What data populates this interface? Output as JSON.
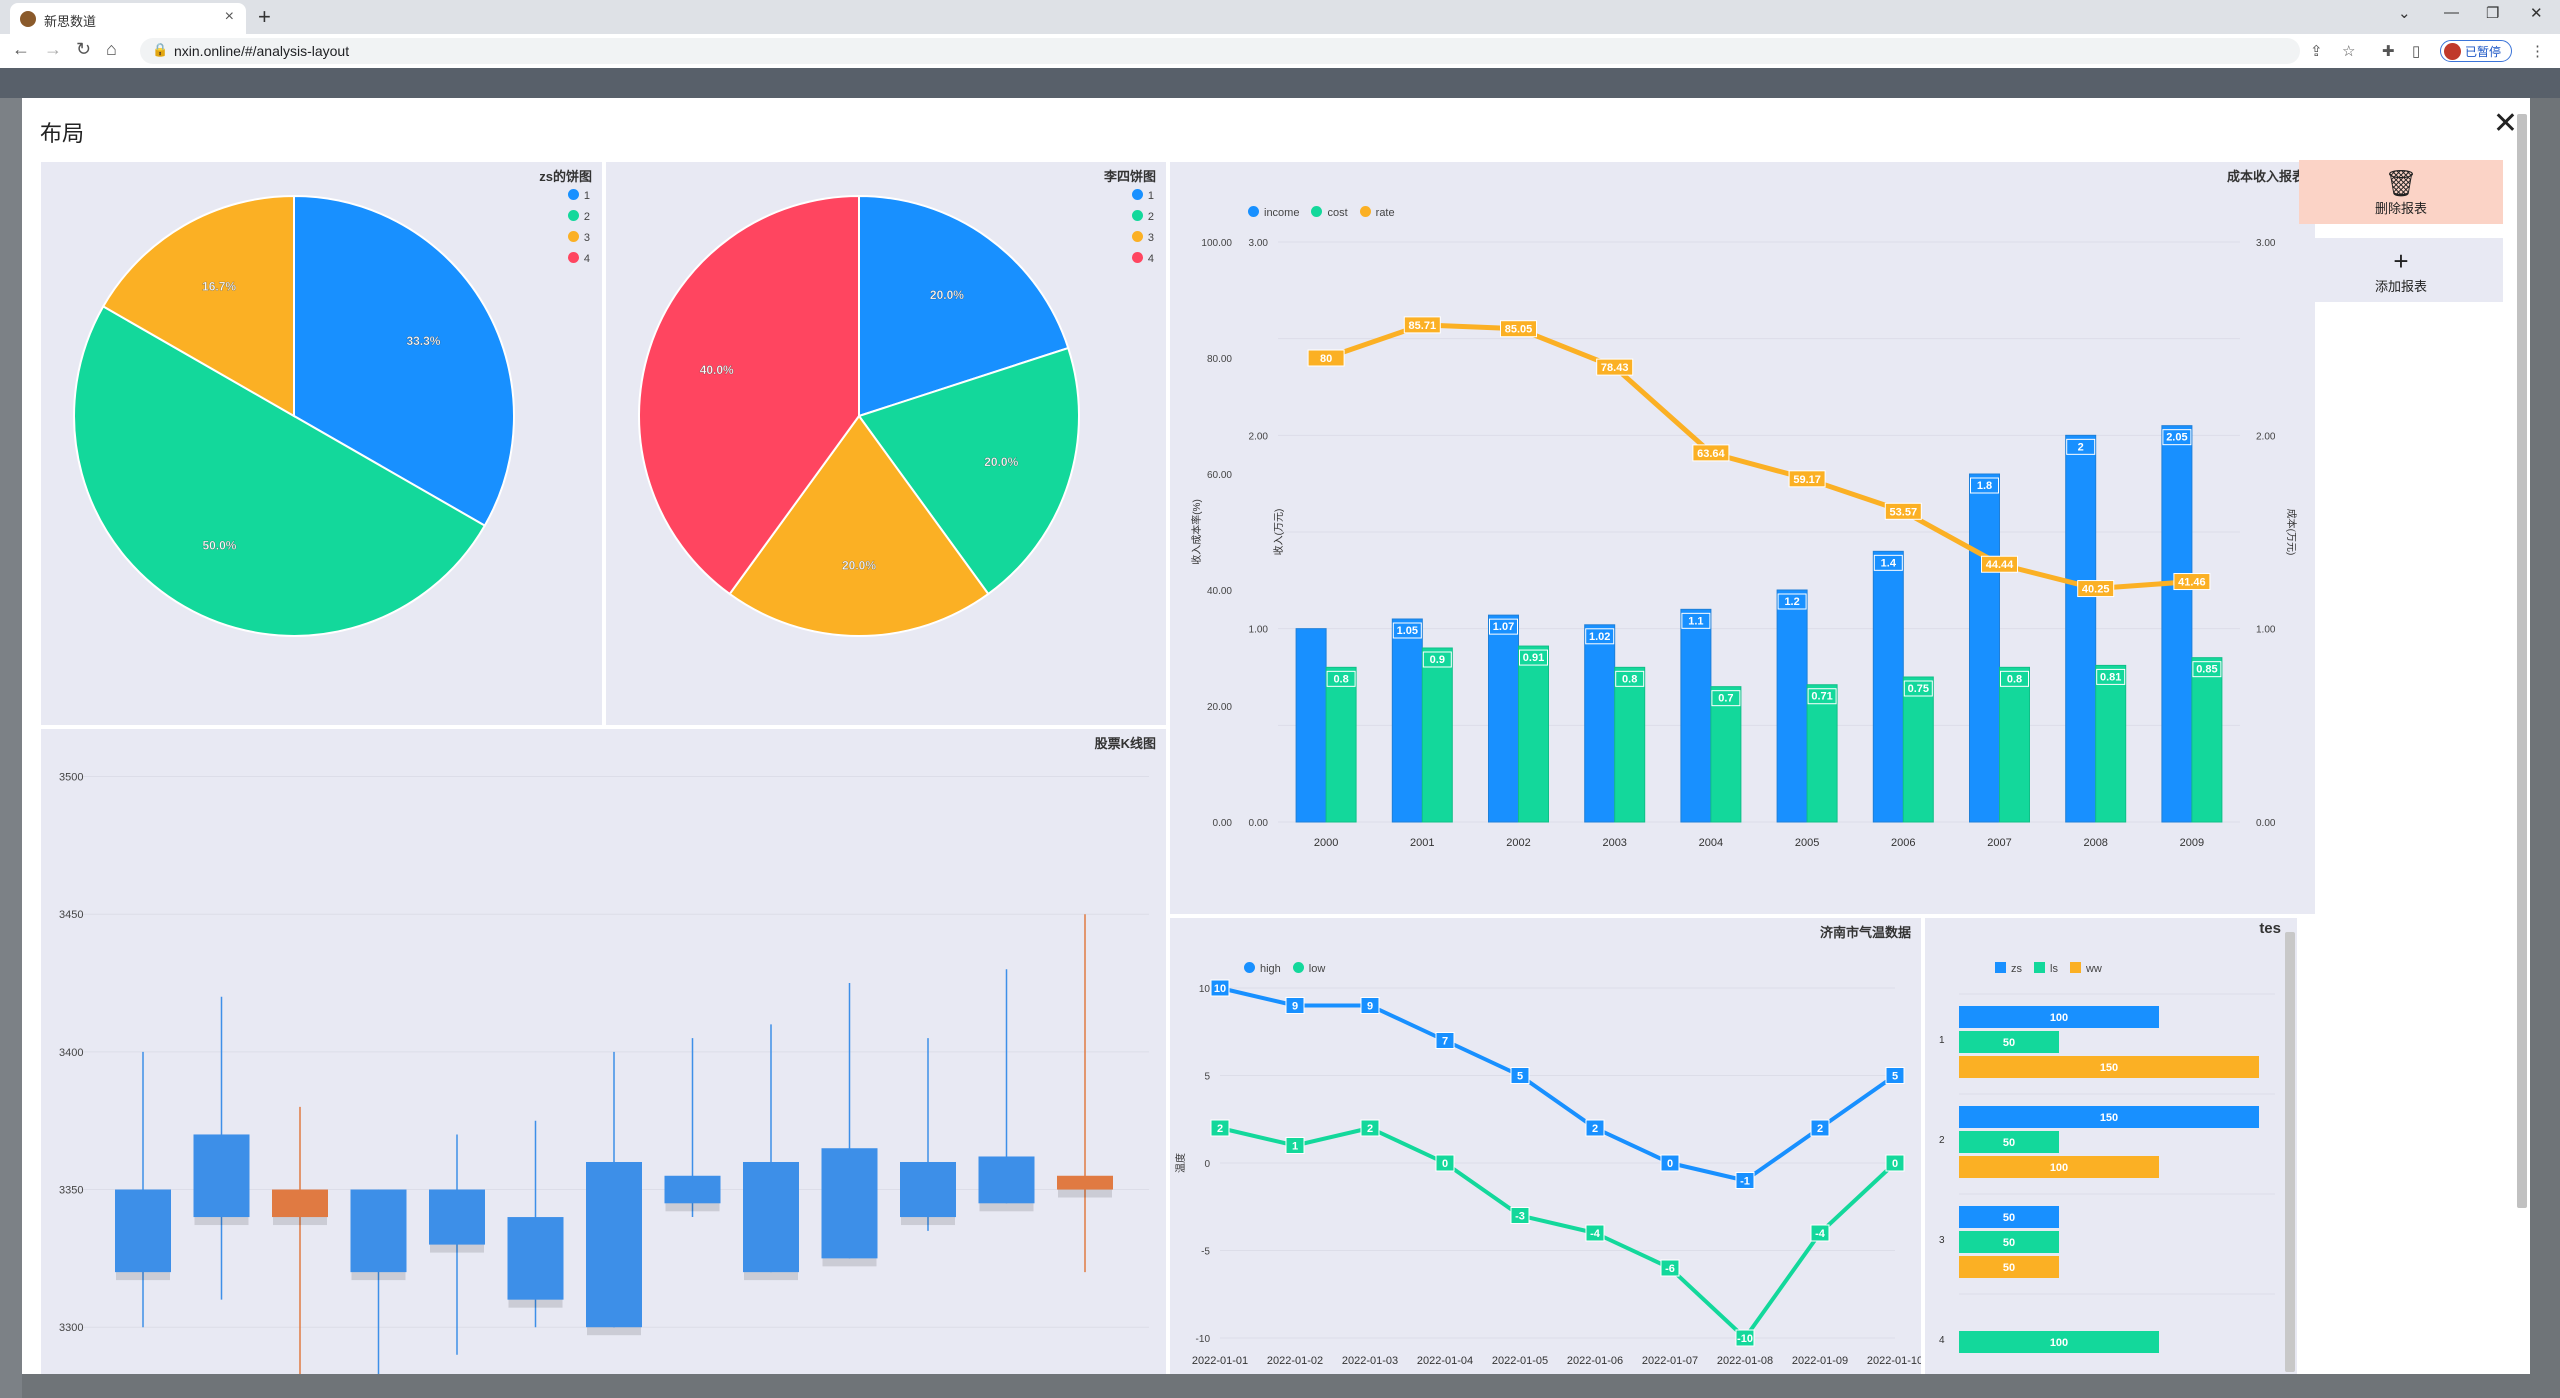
{
  "browser": {
    "tab_title": "新思数道",
    "url": "nxin.online/#/analysis-layout",
    "paused_label": "已暂停",
    "avatar_initial": "B"
  },
  "modal": {
    "title": "布局",
    "close_label": "✕",
    "delete_label": "删除报表",
    "add_label": "添加报表",
    "delete_color": "#fbd3c6",
    "add_color": "#e8e9f3"
  },
  "colors": {
    "blue": "#1890ff",
    "green": "#13d89b",
    "orange": "#fbb024",
    "red": "#ff4560",
    "candle_up": "#3d8fe8",
    "candle_down": "#e07a42"
  },
  "chart_data": [
    {
      "id": "pie1",
      "type": "pie",
      "title": "zs的饼图",
      "legend": [
        "1",
        "2",
        "3",
        "4"
      ],
      "slices": [
        {
          "name": "1",
          "value": 33.3,
          "label": "33.3%"
        },
        {
          "name": "2",
          "value": 50.0,
          "label": "50.0%"
        },
        {
          "name": "3",
          "value": 16.7,
          "label": "16.7%"
        },
        {
          "name": "4",
          "value": 0,
          "label": ""
        }
      ]
    },
    {
      "id": "pie2",
      "type": "pie",
      "title": "李四饼图",
      "legend": [
        "1",
        "2",
        "3",
        "4"
      ],
      "slices": [
        {
          "name": "1",
          "value": 20.0,
          "label": "20.0%"
        },
        {
          "name": "2",
          "value": 20.0,
          "label": "20.0%"
        },
        {
          "name": "3",
          "value": 20.0,
          "label": "20.0%"
        },
        {
          "name": "4",
          "value": 40.0,
          "label": "40.0%"
        }
      ]
    },
    {
      "id": "combo",
      "type": "bar",
      "title": "成本收入报表",
      "legend": [
        "income",
        "cost",
        "rate"
      ],
      "categories": [
        "2000",
        "2001",
        "2002",
        "2003",
        "2004",
        "2005",
        "2006",
        "2007",
        "2008",
        "2009"
      ],
      "series": [
        {
          "name": "income",
          "values": [
            1.0,
            1.05,
            1.07,
            1.02,
            1.1,
            1.2,
            1.4,
            1.8,
            2,
            2.05
          ],
          "labels": [
            "",
            "1.05",
            "1.07",
            "1.02",
            "1.1",
            "1.2",
            "1.4",
            "1.8",
            "2",
            "2.05"
          ]
        },
        {
          "name": "cost",
          "values": [
            0.8,
            0.9,
            0.91,
            0.8,
            0.7,
            0.71,
            0.75,
            0.8,
            0.81,
            0.85
          ],
          "labels": [
            "0.8",
            "0.9",
            "0.91",
            "0.8",
            "0.7",
            "0.71",
            "0.75",
            "0.8",
            "0.81",
            "0.85"
          ]
        },
        {
          "name": "rate",
          "values": [
            80,
            85.71,
            85.05,
            78.43,
            63.64,
            59.17,
            53.57,
            44.44,
            40.25,
            41.46
          ],
          "labels": [
            "80",
            "85.71",
            "85.05",
            "78.43",
            "63.64",
            "59.17",
            "53.57",
            "44.44",
            "40.25",
            "41.46"
          ]
        }
      ],
      "y_left_ticks": [
        "0.00",
        "20.00",
        "40.00",
        "60.00",
        "80.00",
        "100.00"
      ],
      "y_left2_ticks": [
        "0.00",
        "1.00",
        "2.00",
        "3.00"
      ],
      "y_right_ticks": [
        "0.00",
        "1.00",
        "2.00",
        "3.00"
      ],
      "ylabel_left": "收入成本率(%)",
      "ylabel_left2": "收入(万元)",
      "ylabel_right": "成本(万元)",
      "ylim_rate": [
        0,
        100
      ],
      "ylim_amount": [
        0,
        3
      ]
    },
    {
      "id": "kline",
      "type": "candlestick",
      "title": "股票K线图",
      "y_ticks": [
        "3300",
        "3350",
        "3400",
        "3450",
        "3500"
      ],
      "ylim": [
        3283,
        3510
      ],
      "candles": [
        {
          "open": 3350,
          "close": 3320,
          "high": 3400,
          "low": 3300
        },
        {
          "open": 3340,
          "close": 3370,
          "high": 3420,
          "low": 3310
        },
        {
          "open": 3350,
          "close": 3340,
          "high": 3380,
          "low": 3280
        },
        {
          "open": 3320,
          "close": 3350,
          "high": 3350,
          "low": 3260
        },
        {
          "open": 3330,
          "close": 3350,
          "high": 3370,
          "low": 3290
        },
        {
          "open": 3310,
          "close": 3340,
          "high": 3375,
          "low": 3300
        },
        {
          "open": 3300,
          "close": 3360,
          "high": 3400,
          "low": 3300
        },
        {
          "open": 3345,
          "close": 3355,
          "high": 3405,
          "low": 3340
        },
        {
          "open": 3320,
          "close": 3360,
          "high": 3410,
          "low": 3320
        },
        {
          "open": 3325,
          "close": 3365,
          "high": 3425,
          "low": 3325
        },
        {
          "open": 3340,
          "close": 3360,
          "high": 3405,
          "low": 3335
        },
        {
          "open": 3345,
          "close": 3362,
          "high": 3430,
          "low": 3345
        },
        {
          "open": 3355,
          "close": 3350,
          "high": 3450,
          "low": 3320
        }
      ]
    },
    {
      "id": "temp",
      "type": "line",
      "title": "济南市气温数据",
      "legend": [
        "high",
        "low"
      ],
      "categories": [
        "2022-01-01",
        "2022-01-02",
        "2022-01-03",
        "2022-01-04",
        "2022-01-05",
        "2022-01-06",
        "2022-01-07",
        "2022-01-08",
        "2022-01-09",
        "2022-01-10"
      ],
      "series": [
        {
          "name": "high",
          "values": [
            10,
            9,
            9,
            7,
            5,
            2,
            0,
            -1,
            2,
            5
          ]
        },
        {
          "name": "low",
          "values": [
            2,
            1,
            2,
            0,
            -3,
            -4,
            -6,
            -10,
            -4,
            0
          ]
        }
      ],
      "y_ticks": [
        "-10",
        "-5",
        "0",
        "5",
        "10"
      ],
      "ylabel": "温度",
      "ylim": [
        -10,
        10
      ]
    },
    {
      "id": "hbar",
      "type": "bar",
      "title": "tes",
      "legend": [
        "zs",
        "ls",
        "ww"
      ],
      "categories": [
        "1",
        "2",
        "3",
        "4"
      ],
      "series": [
        {
          "name": "zs",
          "values": [
            100,
            150,
            50,
            null
          ]
        },
        {
          "name": "ls",
          "values": [
            50,
            50,
            50,
            100
          ]
        },
        {
          "name": "ww",
          "values": [
            150,
            100,
            50,
            null
          ]
        }
      ],
      "xlim": [
        0,
        150
      ]
    }
  ]
}
